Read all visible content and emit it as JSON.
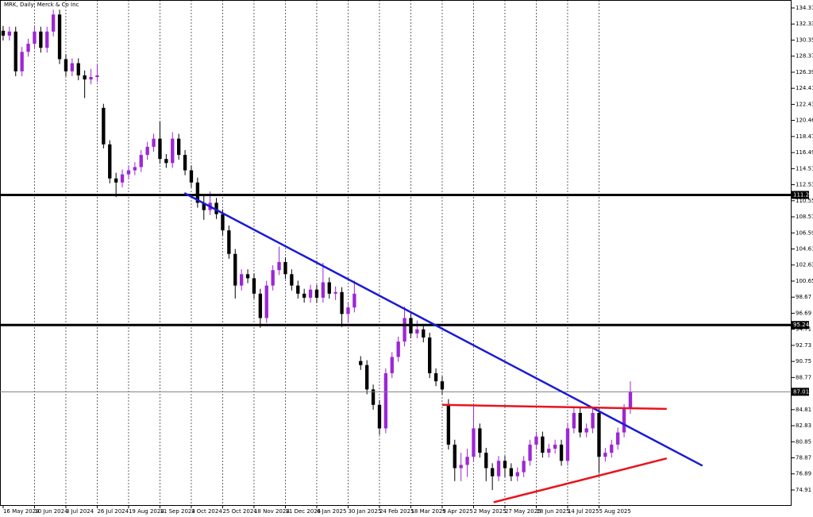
{
  "chart_data": {
    "type": "candlestick",
    "title": "MRK, Daily: Merck & Co Inc",
    "categories": [
      "16 May 2024",
      null,
      null,
      null,
      null,
      "10 Jun 2024",
      null,
      null,
      null,
      null,
      "3 Jul 2024",
      null,
      null,
      null,
      null,
      "26 Jul 2024",
      null,
      null,
      null,
      null,
      "19 Aug 2024",
      null,
      null,
      null,
      null,
      "11 Sep 2024",
      null,
      null,
      null,
      null,
      "3 Oct 2024",
      null,
      null,
      null,
      null,
      "25 Oct 2024",
      null,
      null,
      null,
      null,
      "18 Nov 2024",
      null,
      null,
      null,
      null,
      "11 Dec 2024",
      null,
      null,
      null,
      null,
      "6 Jan 2025",
      null,
      null,
      null,
      null,
      "30 Jan 2025",
      null,
      null,
      null,
      null,
      "24 Feb 2025",
      null,
      null,
      null,
      null,
      "18 Mar 2025",
      null,
      null,
      null,
      null,
      "9 Apr 2025",
      null,
      null,
      null,
      null,
      "2 May 2025",
      null,
      null,
      null,
      null,
      "27 May 2025",
      null,
      null,
      null,
      null,
      "18 Jun 2025",
      null,
      null,
      null,
      null,
      "14 Jul 2025",
      null,
      null,
      null,
      null,
      "5 Aug 2025",
      null,
      null,
      null,
      null,
      null
    ],
    "ohlc": [
      [
        131.5,
        132.1,
        130.3,
        130.9
      ],
      [
        130.9,
        132.0,
        130.3,
        131.4
      ],
      [
        131.4,
        132.0,
        125.9,
        126.5
      ],
      [
        126.5,
        129.5,
        125.9,
        128.9
      ],
      [
        128.9,
        130.5,
        128.3,
        129.9
      ],
      [
        129.9,
        132.0,
        129.3,
        131.4
      ],
      [
        131.4,
        132.0,
        128.8,
        129.4
      ],
      [
        129.4,
        132.0,
        128.8,
        131.4
      ],
      [
        131.4,
        134.1,
        130.8,
        133.5
      ],
      [
        133.5,
        134.1,
        127.4,
        128.0
      ],
      [
        128.0,
        128.6,
        125.9,
        126.5
      ],
      [
        126.5,
        128.1,
        125.9,
        127.5
      ],
      [
        127.5,
        128.1,
        125.4,
        126.0
      ],
      [
        126.0,
        126.6,
        123.2,
        125.5
      ],
      [
        125.5,
        126.8,
        124.9,
        125.8
      ],
      [
        125.8,
        127.4,
        125.2,
        126.0
      ],
      [
        122.0,
        122.5,
        117.0,
        117.5
      ],
      [
        117.5,
        118.0,
        112.7,
        113.3
      ],
      [
        113.3,
        114.0,
        111.0,
        112.8
      ],
      [
        112.8,
        114.4,
        112.2,
        113.8
      ],
      [
        113.8,
        114.9,
        113.2,
        114.3
      ],
      [
        114.3,
        115.3,
        113.7,
        114.7
      ],
      [
        114.7,
        116.8,
        114.1,
        116.2
      ],
      [
        116.2,
        117.8,
        115.6,
        117.2
      ],
      [
        117.2,
        118.8,
        116.6,
        118.2
      ],
      [
        118.2,
        120.3,
        115.1,
        115.7
      ],
      [
        115.7,
        116.3,
        114.6,
        115.2
      ],
      [
        115.2,
        119.0,
        114.6,
        118.2
      ],
      [
        118.2,
        118.8,
        115.6,
        116.2
      ],
      [
        116.2,
        116.8,
        113.7,
        114.3
      ],
      [
        114.3,
        114.9,
        112.2,
        112.8
      ],
      [
        112.8,
        113.4,
        109.7,
        110.3
      ],
      [
        110.3,
        111.3,
        108.2,
        109.4
      ],
      [
        109.4,
        111.7,
        108.8,
        110.3
      ],
      [
        110.3,
        110.9,
        108.3,
        108.9
      ],
      [
        108.9,
        109.5,
        106.3,
        106.9
      ],
      [
        106.9,
        107.5,
        103.4,
        104.0
      ],
      [
        104.0,
        104.6,
        98.5,
        100.1
      ],
      [
        100.1,
        102.1,
        99.5,
        101.5
      ],
      [
        101.5,
        102.1,
        100.4,
        101.0
      ],
      [
        101.0,
        101.6,
        98.5,
        99.1
      ],
      [
        99.1,
        99.7,
        94.9,
        96.1
      ],
      [
        96.1,
        100.7,
        95.5,
        100.1
      ],
      [
        100.1,
        102.6,
        99.5,
        102.0
      ],
      [
        102.0,
        104.9,
        101.4,
        103.0
      ],
      [
        103.0,
        103.6,
        100.9,
        101.5
      ],
      [
        101.5,
        102.1,
        99.5,
        100.1
      ],
      [
        100.1,
        100.7,
        98.5,
        99.1
      ],
      [
        99.1,
        99.7,
        98.0,
        98.6
      ],
      [
        98.6,
        100.2,
        98.0,
        99.6
      ],
      [
        99.6,
        100.2,
        98.0,
        98.6
      ],
      [
        98.6,
        102.9,
        98.0,
        100.5
      ],
      [
        100.5,
        101.1,
        98.5,
        99.1
      ],
      [
        99.1,
        100.0,
        98.3,
        99.3
      ],
      [
        99.3,
        99.9,
        95.0,
        96.6
      ],
      [
        96.6,
        98.0,
        95.5,
        97.4
      ],
      [
        97.4,
        100.7,
        96.8,
        99.1
      ],
      [
        90.8,
        91.4,
        89.7,
        90.3
      ],
      [
        90.3,
        90.9,
        86.7,
        87.3
      ],
      [
        87.3,
        87.9,
        84.8,
        85.4
      ],
      [
        85.4,
        86.0,
        81.7,
        82.5
      ],
      [
        82.5,
        89.9,
        81.9,
        89.3
      ],
      [
        89.3,
        91.9,
        88.7,
        91.3
      ],
      [
        91.3,
        93.8,
        90.7,
        93.2
      ],
      [
        93.2,
        97.5,
        92.6,
        96.1
      ],
      [
        96.1,
        96.7,
        93.6,
        94.2
      ],
      [
        94.2,
        95.8,
        93.6,
        94.7
      ],
      [
        94.7,
        95.3,
        93.1,
        93.7
      ],
      [
        93.7,
        94.3,
        88.7,
        89.3
      ],
      [
        89.3,
        89.9,
        87.7,
        88.3
      ],
      [
        88.3,
        88.9,
        86.7,
        87.3
      ],
      [
        85.5,
        86.1,
        79.9,
        80.5
      ],
      [
        80.5,
        81.1,
        76.0,
        77.6
      ],
      [
        77.6,
        79.5,
        76.0,
        78.0
      ],
      [
        78.0,
        80.0,
        76.5,
        79.0
      ],
      [
        79.0,
        85.2,
        78.4,
        82.5
      ],
      [
        82.5,
        83.1,
        78.9,
        79.5
      ],
      [
        79.5,
        80.1,
        76.0,
        77.6
      ],
      [
        77.6,
        78.2,
        74.9,
        76.6
      ],
      [
        76.6,
        79.1,
        76.0,
        78.5
      ],
      [
        78.5,
        79.1,
        76.5,
        77.6
      ],
      [
        77.6,
        78.2,
        76.0,
        76.6
      ],
      [
        76.6,
        77.7,
        76.0,
        77.1
      ],
      [
        77.1,
        79.1,
        76.5,
        78.5
      ],
      [
        78.5,
        81.1,
        77.9,
        80.5
      ],
      [
        80.5,
        82.1,
        79.9,
        81.5
      ],
      [
        81.5,
        82.1,
        78.9,
        79.5
      ],
      [
        79.5,
        80.6,
        78.9,
        80.0
      ],
      [
        80.0,
        81.1,
        79.4,
        80.5
      ],
      [
        80.5,
        81.1,
        77.9,
        78.5
      ],
      [
        78.5,
        83.1,
        77.9,
        82.5
      ],
      [
        82.5,
        85.0,
        81.9,
        84.4
      ],
      [
        84.4,
        85.0,
        81.4,
        82.0
      ],
      [
        82.0,
        83.1,
        81.4,
        82.5
      ],
      [
        82.5,
        85.0,
        81.9,
        84.4
      ],
      [
        84.4,
        85.0,
        77.0,
        79.0
      ],
      [
        79.0,
        80.1,
        78.4,
        79.5
      ],
      [
        79.5,
        81.1,
        78.9,
        80.5
      ],
      [
        80.5,
        82.6,
        79.9,
        82.0
      ],
      [
        82.0,
        85.5,
        81.4,
        84.9
      ],
      [
        84.9,
        88.3,
        84.3,
        87.0
      ]
    ],
    "up_color": "#9c27d6",
    "down_color": "#000000",
    "xlim": [
      -0.5,
      125.7
    ],
    "ylim": [
      72.95,
      135.29
    ],
    "yticks": [
      134.31,
      132.33,
      130.35,
      128.37,
      126.39,
      124.41,
      122.43,
      120.46,
      118.47,
      116.49,
      114.51,
      112.53,
      110.55,
      108.57,
      106.59,
      104.61,
      102.63,
      100.65,
      98.67,
      96.69,
      94.71,
      92.73,
      90.75,
      88.77,
      84.81,
      82.83,
      80.85,
      78.87,
      76.89,
      74.91
    ],
    "grid": "vertical",
    "hlines": [
      {
        "value": 111.27,
        "color": "#000000",
        "width": 3
      },
      {
        "value": 95.24,
        "color": "#000000",
        "width": 3
      },
      {
        "value": 87.01,
        "color": "#808080",
        "width": 1
      }
    ],
    "trendlines": [
      {
        "x": [
          28.9,
          111.5
        ],
        "y": [
          111.5,
          77.9
        ],
        "color": "#1a1ad6"
      },
      {
        "x": [
          70,
          105.8
        ],
        "y": [
          85.4,
          84.9
        ],
        "color": "#e8141e"
      },
      {
        "x": [
          78.2,
          105.8
        ],
        "y": [
          73.4,
          78.8
        ],
        "color": "#e8141e"
      }
    ]
  }
}
